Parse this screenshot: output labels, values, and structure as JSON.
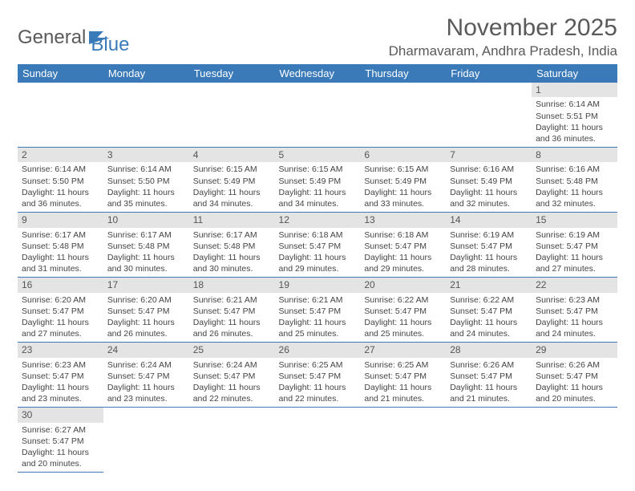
{
  "brand": {
    "part1": "General",
    "part2": "Blue"
  },
  "title": "November 2025",
  "location": "Dharmavaram, Andhra Pradesh, India",
  "colors": {
    "header_bg": "#3a7ab8",
    "header_text": "#ffffff",
    "daynum_bg": "#e4e4e4",
    "border": "#3a7ab8",
    "text": "#444444",
    "title_text": "#5a5a5a"
  },
  "weekdays": [
    "Sunday",
    "Monday",
    "Tuesday",
    "Wednesday",
    "Thursday",
    "Friday",
    "Saturday"
  ],
  "weeks": [
    [
      null,
      null,
      null,
      null,
      null,
      null,
      {
        "n": "1",
        "sr": "6:14 AM",
        "ss": "5:51 PM",
        "dl": "11 hours and 36 minutes."
      }
    ],
    [
      {
        "n": "2",
        "sr": "6:14 AM",
        "ss": "5:50 PM",
        "dl": "11 hours and 36 minutes."
      },
      {
        "n": "3",
        "sr": "6:14 AM",
        "ss": "5:50 PM",
        "dl": "11 hours and 35 minutes."
      },
      {
        "n": "4",
        "sr": "6:15 AM",
        "ss": "5:49 PM",
        "dl": "11 hours and 34 minutes."
      },
      {
        "n": "5",
        "sr": "6:15 AM",
        "ss": "5:49 PM",
        "dl": "11 hours and 34 minutes."
      },
      {
        "n": "6",
        "sr": "6:15 AM",
        "ss": "5:49 PM",
        "dl": "11 hours and 33 minutes."
      },
      {
        "n": "7",
        "sr": "6:16 AM",
        "ss": "5:49 PM",
        "dl": "11 hours and 32 minutes."
      },
      {
        "n": "8",
        "sr": "6:16 AM",
        "ss": "5:48 PM",
        "dl": "11 hours and 32 minutes."
      }
    ],
    [
      {
        "n": "9",
        "sr": "6:17 AM",
        "ss": "5:48 PM",
        "dl": "11 hours and 31 minutes."
      },
      {
        "n": "10",
        "sr": "6:17 AM",
        "ss": "5:48 PM",
        "dl": "11 hours and 30 minutes."
      },
      {
        "n": "11",
        "sr": "6:17 AM",
        "ss": "5:48 PM",
        "dl": "11 hours and 30 minutes."
      },
      {
        "n": "12",
        "sr": "6:18 AM",
        "ss": "5:47 PM",
        "dl": "11 hours and 29 minutes."
      },
      {
        "n": "13",
        "sr": "6:18 AM",
        "ss": "5:47 PM",
        "dl": "11 hours and 29 minutes."
      },
      {
        "n": "14",
        "sr": "6:19 AM",
        "ss": "5:47 PM",
        "dl": "11 hours and 28 minutes."
      },
      {
        "n": "15",
        "sr": "6:19 AM",
        "ss": "5:47 PM",
        "dl": "11 hours and 27 minutes."
      }
    ],
    [
      {
        "n": "16",
        "sr": "6:20 AM",
        "ss": "5:47 PM",
        "dl": "11 hours and 27 minutes."
      },
      {
        "n": "17",
        "sr": "6:20 AM",
        "ss": "5:47 PM",
        "dl": "11 hours and 26 minutes."
      },
      {
        "n": "18",
        "sr": "6:21 AM",
        "ss": "5:47 PM",
        "dl": "11 hours and 26 minutes."
      },
      {
        "n": "19",
        "sr": "6:21 AM",
        "ss": "5:47 PM",
        "dl": "11 hours and 25 minutes."
      },
      {
        "n": "20",
        "sr": "6:22 AM",
        "ss": "5:47 PM",
        "dl": "11 hours and 25 minutes."
      },
      {
        "n": "21",
        "sr": "6:22 AM",
        "ss": "5:47 PM",
        "dl": "11 hours and 24 minutes."
      },
      {
        "n": "22",
        "sr": "6:23 AM",
        "ss": "5:47 PM",
        "dl": "11 hours and 24 minutes."
      }
    ],
    [
      {
        "n": "23",
        "sr": "6:23 AM",
        "ss": "5:47 PM",
        "dl": "11 hours and 23 minutes."
      },
      {
        "n": "24",
        "sr": "6:24 AM",
        "ss": "5:47 PM",
        "dl": "11 hours and 23 minutes."
      },
      {
        "n": "25",
        "sr": "6:24 AM",
        "ss": "5:47 PM",
        "dl": "11 hours and 22 minutes."
      },
      {
        "n": "26",
        "sr": "6:25 AM",
        "ss": "5:47 PM",
        "dl": "11 hours and 22 minutes."
      },
      {
        "n": "27",
        "sr": "6:25 AM",
        "ss": "5:47 PM",
        "dl": "11 hours and 21 minutes."
      },
      {
        "n": "28",
        "sr": "6:26 AM",
        "ss": "5:47 PM",
        "dl": "11 hours and 21 minutes."
      },
      {
        "n": "29",
        "sr": "6:26 AM",
        "ss": "5:47 PM",
        "dl": "11 hours and 20 minutes."
      }
    ],
    [
      {
        "n": "30",
        "sr": "6:27 AM",
        "ss": "5:47 PM",
        "dl": "11 hours and 20 minutes."
      },
      null,
      null,
      null,
      null,
      null,
      null
    ]
  ],
  "labels": {
    "sunrise": "Sunrise:",
    "sunset": "Sunset:",
    "daylight": "Daylight:"
  }
}
